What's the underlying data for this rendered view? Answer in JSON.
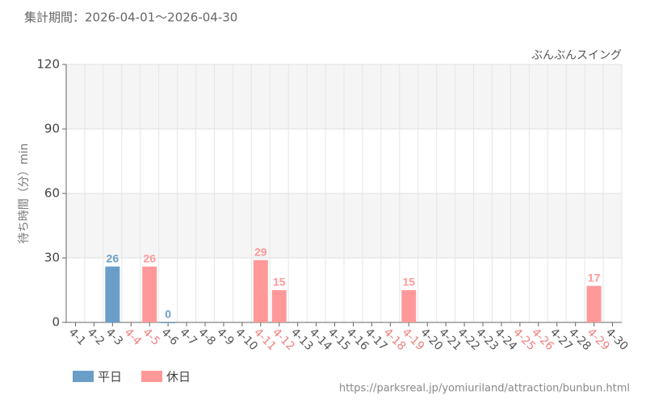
{
  "period": "集計期間：2026-04-01～2026-04-30",
  "source": "https://parksreal.jp/yomiuriland/attraction/bunbun.html",
  "chart_data": {
    "type": "bar",
    "subtitle": "ぶんぶんスイング",
    "y_label": "待ち時間（分）min",
    "categories": [
      "4-1",
      "4-2",
      "4-3",
      "4-4",
      "4-5",
      "4-6",
      "4-7",
      "4-8",
      "4-9",
      "4-10",
      "4-11",
      "4-12",
      "4-13",
      "4-14",
      "4-15",
      "4-16",
      "4-17",
      "4-18",
      "4-19",
      "4-20",
      "4-21",
      "4-22",
      "4-23",
      "4-24",
      "4-25",
      "4-26",
      "4-27",
      "4-28",
      "4-29",
      "4-30"
    ],
    "category_colors": [
      "#555",
      "#555",
      "#555",
      "#f08080",
      "#f08080",
      "#555",
      "#555",
      "#555",
      "#555",
      "#555",
      "#f08080",
      "#f08080",
      "#555",
      "#555",
      "#555",
      "#555",
      "#555",
      "#f08080",
      "#f08080",
      "#555",
      "#555",
      "#555",
      "#555",
      "#555",
      "#f08080",
      "#f08080",
      "#555",
      "#555",
      "#f08080",
      "#555"
    ],
    "series": [
      {
        "name": "平日",
        "color": "#6a9ec8",
        "values": [
          null,
          null,
          26,
          null,
          null,
          0,
          null,
          null,
          null,
          null,
          null,
          null,
          null,
          null,
          null,
          null,
          null,
          null,
          null,
          null,
          null,
          null,
          null,
          null,
          null,
          null,
          null,
          null,
          null,
          null
        ]
      },
      {
        "name": "休日",
        "color": "#ff9999",
        "values": [
          null,
          null,
          null,
          null,
          26,
          null,
          null,
          null,
          null,
          null,
          29,
          15,
          null,
          null,
          null,
          null,
          null,
          null,
          15,
          null,
          null,
          null,
          null,
          null,
          null,
          null,
          null,
          null,
          17,
          null
        ]
      }
    ],
    "ylim": [
      0,
      120
    ],
    "yticks": [
      0,
      30,
      60,
      90,
      120
    ],
    "grid": true
  }
}
